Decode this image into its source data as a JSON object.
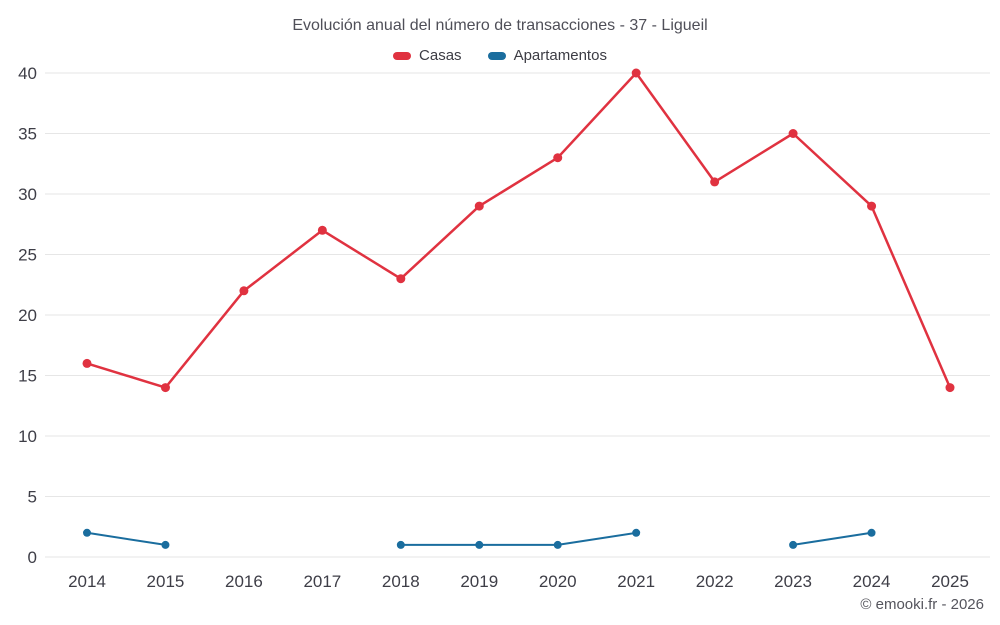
{
  "chart_data": {
    "type": "line",
    "title": "Evolución anual del número de transacciones - 37 - Ligueil",
    "categories": [
      "2014",
      "2015",
      "2016",
      "2017",
      "2018",
      "2019",
      "2020",
      "2021",
      "2022",
      "2023",
      "2024",
      "2025"
    ],
    "series": [
      {
        "name": "Casas",
        "color": "#e03240",
        "marker_radius": 4.5,
        "line_width": 2.5,
        "values": [
          16,
          14,
          22,
          27,
          23,
          29,
          33,
          40,
          31,
          35,
          29,
          14
        ]
      },
      {
        "name": "Apartamentos",
        "color": "#1a6d9e",
        "marker_radius": 4,
        "line_width": 2,
        "values": [
          2,
          1,
          null,
          null,
          1,
          1,
          1,
          2,
          null,
          1,
          2,
          null
        ]
      }
    ],
    "ylim": [
      0,
      40
    ],
    "ytick_step": 5,
    "grid": "horizontal",
    "legend_position": "top"
  },
  "footer": {
    "credit": "© emooki.fr - 2026"
  },
  "colors": {
    "grid": "#e6e6e6",
    "axis_text": "#3e3e47",
    "background": "#ffffff"
  }
}
